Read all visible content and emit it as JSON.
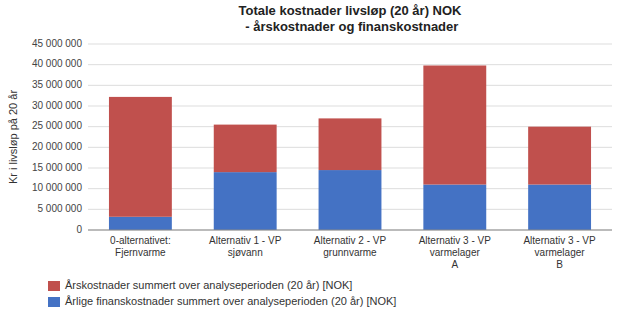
{
  "chart_data": {
    "type": "bar",
    "stacked": true,
    "title": "Totale kostnader livsløp (20 år) NOK\n - årskostnader og finanskostnader",
    "ylabel": "Kr i livsløp på 20 år",
    "categories": [
      "0-alternativet:\nFjernvarme",
      "Alternativ 1 - VP\nsjøvann",
      "Alternativ 2 - VP\ngrunnvarme",
      "Alternativ 3 - VP\nvarmelager\nA",
      "Alternativ 3 - VP\nvarmelager\nB"
    ],
    "series": [
      {
        "name": "Årlige finanskostnader summert over analyseperioden (20 år) [NOK]",
        "color": "#4472C4",
        "values": [
          3200000,
          14000000,
          14500000,
          11000000,
          11000000
        ]
      },
      {
        "name": "Årskostnader summert over analyseperioden (20 år) [NOK]",
        "color": "#C0504D",
        "values": [
          29000000,
          11500000,
          12500000,
          28800000,
          14000000
        ]
      }
    ],
    "ylim": [
      0,
      45000000
    ],
    "yticks": [
      0,
      {
        "value": 5000000,
        "label": "5 000 000"
      },
      {
        "value": 10000000,
        "label": "10 000 000"
      },
      {
        "value": 15000000,
        "label": "15 000 000"
      },
      {
        "value": 20000000,
        "label": "20 000 000"
      },
      {
        "value": 25000000,
        "label": "25 000 000"
      },
      {
        "value": 30000000,
        "label": "30 000 000"
      },
      {
        "value": 35000000,
        "label": "35 000 000"
      },
      {
        "value": 40000000,
        "label": "40 000 000"
      },
      {
        "value": 45000000,
        "label": "45 000 000"
      }
    ],
    "grid": true,
    "legend": "bottom"
  }
}
